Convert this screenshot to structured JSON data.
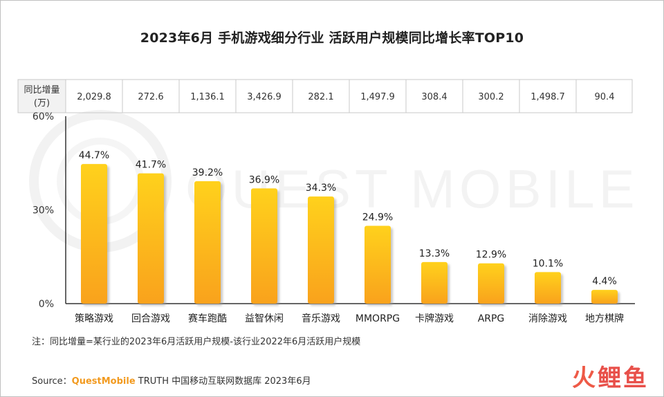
{
  "title": "2023年6月 手机游戏细分行业 活跃用户规模同比增长率TOP10",
  "table": {
    "header": "同比增量（万）",
    "header_line1": "同比增量",
    "header_line2": "(万)",
    "values": [
      "2,029.8",
      "272.6",
      "1,136.1",
      "3,426.9",
      "282.1",
      "1,497.9",
      "308.4",
      "300.2",
      "1,498.7",
      "90.4"
    ]
  },
  "watermark": "QUEST MOBILE",
  "note": "注：同比增量=某行业的2023年6月活跃用户规模-该行业2022年6月活跃用户规模",
  "source": {
    "prefix": "Source：",
    "brand": "QuestMobile",
    "rest": " TRUTH 中国移动互联网数据库 2023年6月"
  },
  "logo": {
    "part1": "火",
    "part2": "鲤鱼"
  },
  "colors": {
    "bar_top": "#ffd11a",
    "bar_bottom": "#f9a21b",
    "brand": "#f29a1f"
  },
  "chart_data": {
    "type": "bar",
    "title": "2023年6月 手机游戏细分行业 活跃用户规模同比增长率TOP10",
    "categories": [
      "策略游戏",
      "回合游戏",
      "赛车跑酷",
      "益智休闲",
      "音乐游戏",
      "MMORPG",
      "卡牌游戏",
      "ARPG",
      "消除游戏",
      "地方棋牌"
    ],
    "values": [
      44.7,
      41.7,
      39.2,
      36.9,
      34.3,
      24.9,
      13.3,
      12.9,
      10.1,
      4.4
    ],
    "data_labels": [
      "44.7%",
      "41.7%",
      "39.2%",
      "36.9%",
      "34.3%",
      "24.9%",
      "13.3%",
      "12.9%",
      "10.1%",
      "4.4%"
    ],
    "ylim": [
      0,
      60
    ],
    "yticks": [
      "0%",
      "30%",
      "60%"
    ],
    "ytick_values": [
      0,
      30,
      60
    ],
    "xlabel": "",
    "ylabel": "",
    "grid": false,
    "legend": "none"
  }
}
